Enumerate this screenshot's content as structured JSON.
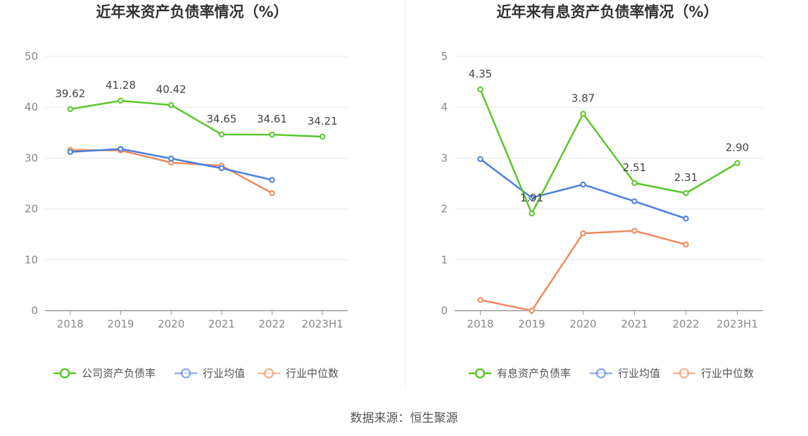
{
  "colors": {
    "company": "#5ac62d",
    "industry_avg": "#4a7ee0",
    "industry_median": "#f08a5d",
    "grid": "#e6e9f4",
    "axis": "#999999",
    "divider": "#eeeeee"
  },
  "source": "数据来源：恒生聚源",
  "chart_data": [
    {
      "type": "line",
      "title": "近年来资产负债率情况（%）",
      "categories": [
        "2018",
        "2019",
        "2020",
        "2021",
        "2022",
        "2023H1"
      ],
      "ylim": [
        0,
        50
      ],
      "yticks": [
        0,
        10,
        20,
        30,
        40,
        50
      ],
      "grid": true,
      "legend_position": "bottom-center",
      "series": [
        {
          "name": "公司资产负债率",
          "color": "#5ac62d",
          "values": [
            39.62,
            41.28,
            40.42,
            34.65,
            34.61,
            34.21
          ],
          "labels": [
            "39.62",
            "41.28",
            "40.42",
            "34.65",
            "34.61",
            "34.21"
          ]
        },
        {
          "name": "行业均值",
          "color": "#4a7ee0",
          "values": [
            31.2,
            31.8,
            29.9,
            28.0,
            25.7,
            null
          ]
        },
        {
          "name": "行业中位数",
          "color": "#f08a5d",
          "values": [
            31.6,
            31.5,
            29.1,
            28.5,
            23.1,
            null
          ]
        }
      ]
    },
    {
      "type": "line",
      "title": "近年来有息资产负债率情况（%）",
      "categories": [
        "2018",
        "2019",
        "2020",
        "2021",
        "2022",
        "2023H1"
      ],
      "ylim": [
        0,
        5
      ],
      "yticks": [
        0,
        1,
        2,
        3,
        4,
        5
      ],
      "grid": true,
      "legend_position": "bottom-center",
      "series": [
        {
          "name": "有息资产负债率",
          "color": "#5ac62d",
          "values": [
            4.35,
            1.91,
            3.87,
            2.51,
            2.31,
            2.9
          ],
          "labels": [
            "4.35",
            "1.91",
            "3.87",
            "2.51",
            "2.31",
            "2.90"
          ]
        },
        {
          "name": "行业均值",
          "color": "#4a7ee0",
          "values": [
            2.98,
            2.22,
            2.48,
            2.15,
            1.81,
            null
          ]
        },
        {
          "name": "行业中位数",
          "color": "#f08a5d",
          "values": [
            0.21,
            0.0,
            1.52,
            1.57,
            1.3,
            null
          ]
        }
      ]
    }
  ]
}
